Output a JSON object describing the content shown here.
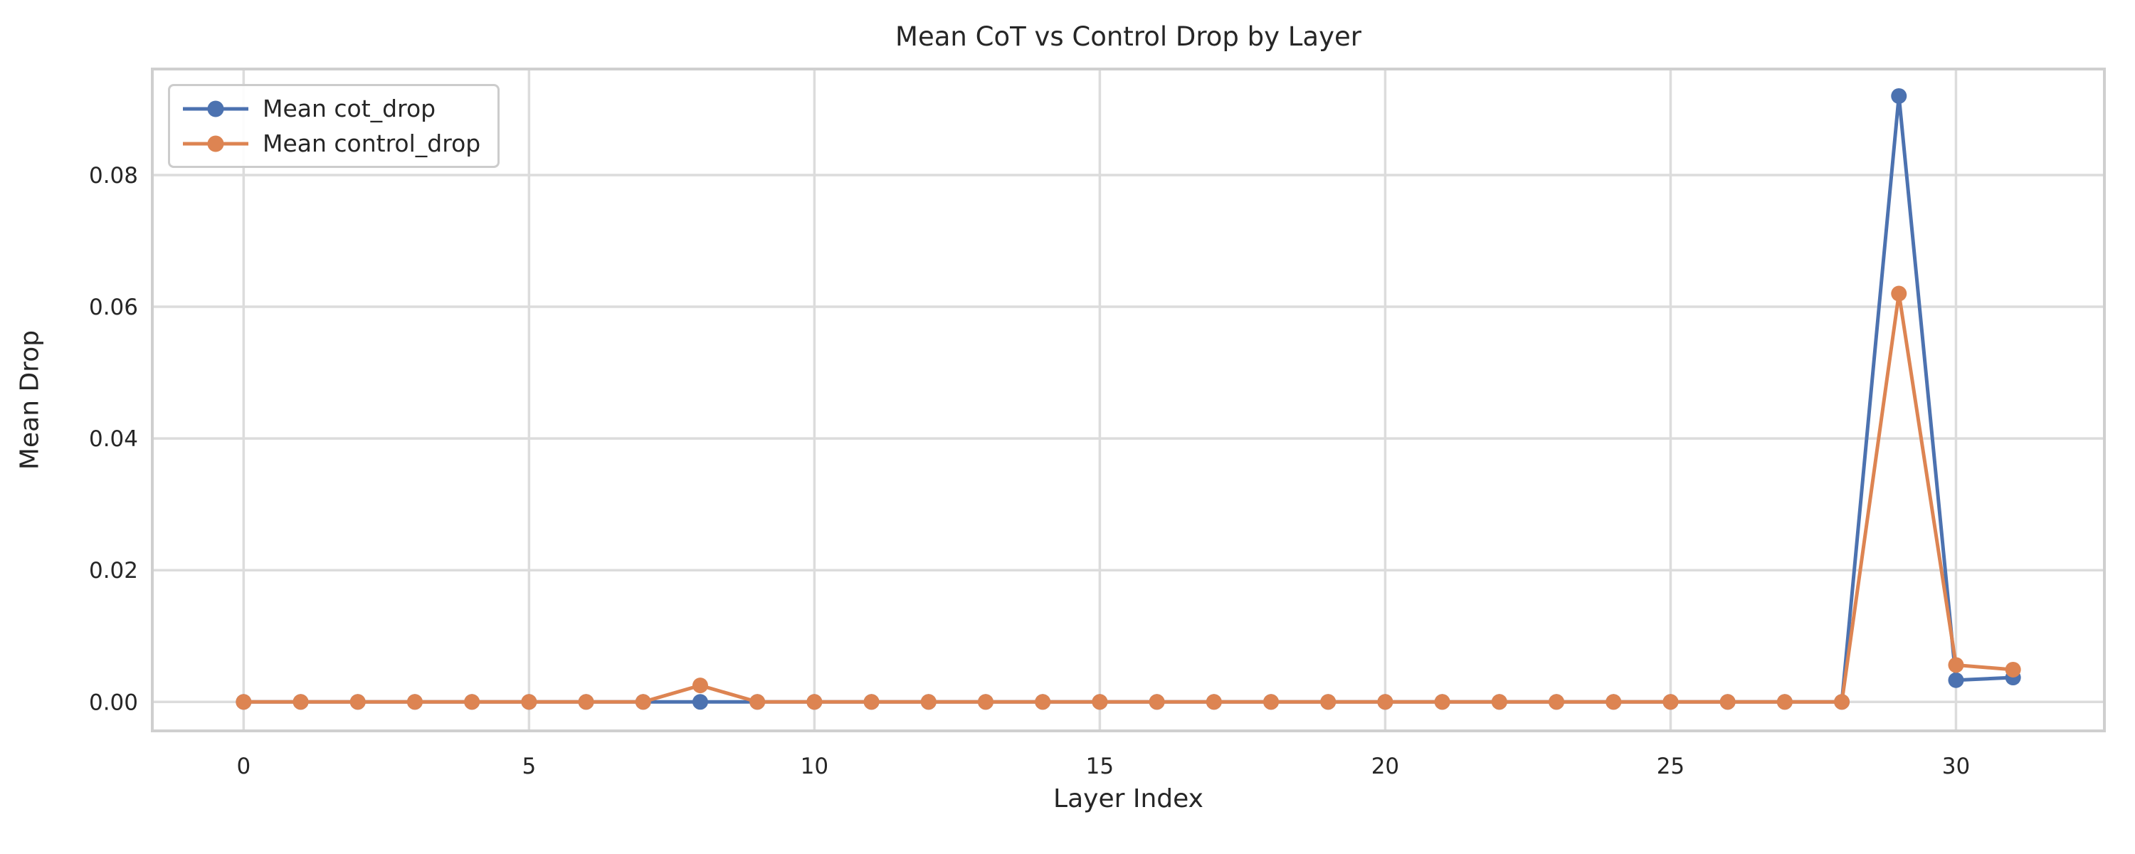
{
  "chart_data": {
    "type": "line",
    "title": "Mean CoT vs Control Drop by Layer",
    "xlabel": "Layer Index",
    "ylabel": "Mean Drop",
    "x": [
      0,
      1,
      2,
      3,
      4,
      5,
      6,
      7,
      8,
      9,
      10,
      11,
      12,
      13,
      14,
      15,
      16,
      17,
      18,
      19,
      20,
      21,
      22,
      23,
      24,
      25,
      26,
      27,
      28,
      29,
      30,
      31
    ],
    "series": [
      {
        "name": "Mean cot_drop",
        "color": "#4C72B0",
        "values": [
          0.0,
          0.0,
          0.0,
          0.0,
          0.0,
          0.0,
          0.0,
          0.0,
          0.0,
          0.0,
          0.0,
          0.0,
          0.0,
          0.0,
          0.0,
          0.0,
          0.0,
          0.0,
          0.0,
          0.0,
          0.0,
          0.0,
          0.0,
          0.0,
          0.0,
          0.0,
          0.0,
          0.0,
          0.0,
          0.092,
          0.0033,
          0.0037
        ]
      },
      {
        "name": "Mean control_drop",
        "color": "#DD8452",
        "values": [
          0.0,
          0.0,
          0.0,
          0.0,
          0.0,
          0.0,
          0.0,
          0.0,
          0.0025,
          0.0,
          0.0,
          0.0,
          0.0,
          0.0,
          0.0,
          0.0,
          0.0,
          0.0,
          0.0,
          0.0,
          0.0,
          0.0,
          0.0,
          0.0,
          0.0,
          0.0,
          0.0,
          0.0,
          0.0,
          0.062,
          0.0056,
          0.0049
        ]
      }
    ],
    "xticks": [
      {
        "label": "0",
        "value": 0
      },
      {
        "label": "5",
        "value": 5
      },
      {
        "label": "10",
        "value": 10
      },
      {
        "label": "15",
        "value": 15
      },
      {
        "label": "20",
        "value": 20
      },
      {
        "label": "25",
        "value": 25
      },
      {
        "label": "30",
        "value": 30
      }
    ],
    "yticks": [
      {
        "label": "0.00",
        "value": 0.0
      },
      {
        "label": "0.02",
        "value": 0.02
      },
      {
        "label": "0.04",
        "value": 0.04
      },
      {
        "label": "0.06",
        "value": 0.06
      },
      {
        "label": "0.08",
        "value": 0.08
      }
    ],
    "xlim": [
      -1.6,
      32.6
    ],
    "ylim": [
      -0.0044,
      0.0961
    ],
    "grid": true,
    "legend_position": "upper left",
    "background_color": "#ffffff",
    "grid_color": "#dcdcdc",
    "spine_color": "#cfcfcf",
    "text_color": "#262626"
  }
}
